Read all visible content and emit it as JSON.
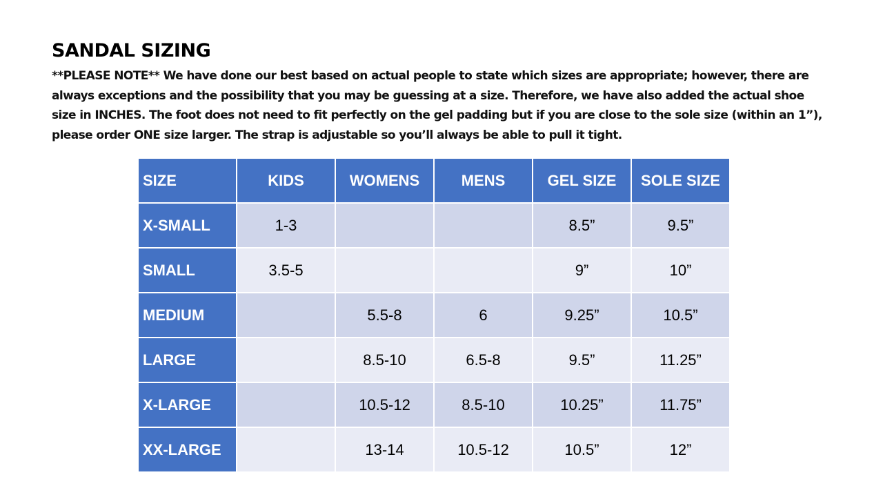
{
  "title": "SANDAL SIZING",
  "note_lines": [
    "**PLEASE NOTE**  We have done our best based on actual people to state which sizes are appropriate; however, there are",
    "always exceptions and the possibility that you may be guessing at a size.  Therefore, we have also added the actual shoe",
    "size in INCHES.  The foot does not need to fit perfectly on the gel padding but if you are close to the sole size (within an 1”),",
    "please order ONE size larger.  The strap is adjustable so you’ll always be able to pull it tight."
  ],
  "table": {
    "headers": [
      "SIZE",
      "KIDS",
      "WOMENS",
      "MENS",
      "GEL SIZE",
      "SOLE SIZE"
    ],
    "rows": [
      [
        "X-SMALL",
        "1-3",
        null,
        null,
        "8.5”",
        "9.5”"
      ],
      [
        "SMALL",
        "3.5-5",
        null,
        null,
        "9”",
        "10”"
      ],
      [
        "MEDIUM",
        null,
        "5.5-8",
        "6",
        "9.25”",
        "10.5”"
      ],
      [
        "LARGE",
        null,
        "8.5-10",
        "6.5-8",
        "9.5”",
        "11.25”"
      ],
      [
        "X-LARGE",
        null,
        "10.5-12",
        "8.5-10",
        "10.25”",
        "11.75”"
      ],
      [
        "XX-LARGE",
        null,
        "13-14",
        "10.5-12",
        "10.5”",
        "12”"
      ]
    ]
  }
}
